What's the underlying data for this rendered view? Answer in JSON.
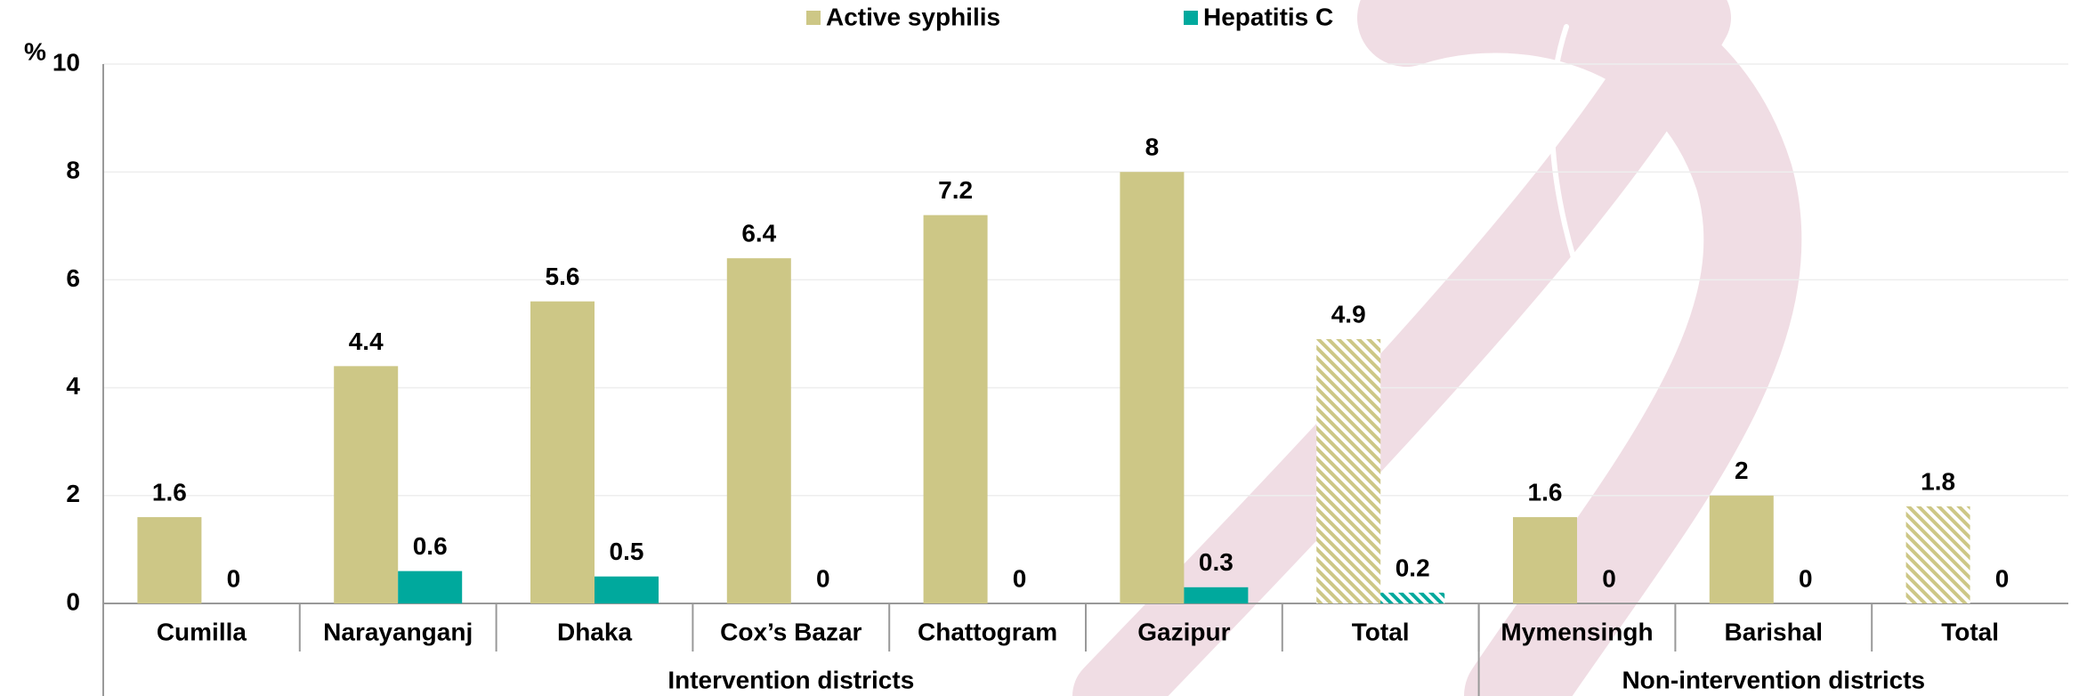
{
  "chart_data": {
    "type": "bar",
    "y_label": "%",
    "categories": [
      "Cumilla",
      "Narayanganj",
      "Dhaka",
      "Cox’s Bazar",
      "Chattogram",
      "Gazipur",
      "Total",
      "Mymensingh",
      "Barishal",
      "Total"
    ],
    "category_groups": [
      {
        "name": "Intervention districts",
        "size": 7
      },
      {
        "name": "Non-intervention districts",
        "size": 3
      }
    ],
    "hatched_categories": [
      6,
      9
    ],
    "series": [
      {
        "name": "Active syphilis",
        "color": "#cdc786",
        "values": [
          1.6,
          4.4,
          5.6,
          6.4,
          7.2,
          8,
          4.9,
          1.6,
          2,
          1.8
        ]
      },
      {
        "name": "Hepatitis C",
        "color": "#00a99d",
        "values": [
          0,
          0.6,
          0.5,
          0,
          0,
          0.3,
          0.2,
          0,
          0,
          0
        ]
      }
    ],
    "ylim": [
      0,
      10
    ],
    "yticks": [
      0,
      2,
      4,
      6,
      8,
      10
    ],
    "grid": true,
    "legend": "top"
  }
}
